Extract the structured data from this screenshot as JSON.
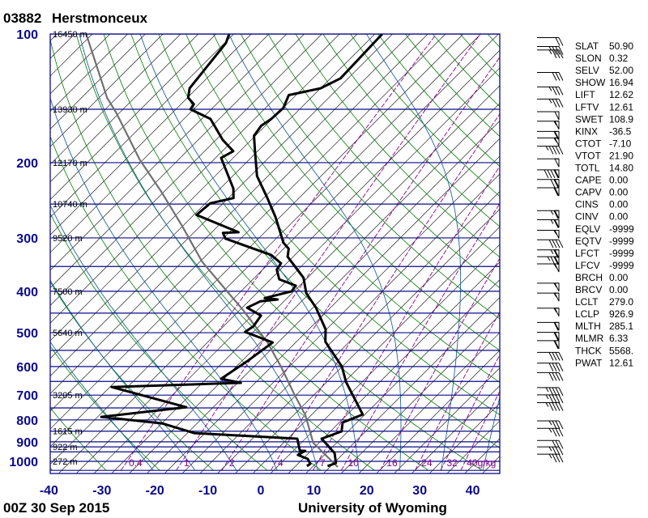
{
  "header": {
    "station": "03882",
    "name": "Herstmonceux"
  },
  "footer": {
    "time": "00Z 30 Sep 2015",
    "credit": "University of Wyoming"
  },
  "colors": {
    "axis": "#0a0a8a",
    "isobar": "#0a0a8a",
    "isotherm": "#000000",
    "dry_adiabat": "#008000",
    "moist_adiabat": "#1e64a0",
    "mixing_ratio": "#8b008b",
    "sounding": "#000000",
    "parcel": "#707070"
  },
  "indices": [
    {
      "key": "SLAT",
      "value": "50.90"
    },
    {
      "key": "SLON",
      "value": "0.32"
    },
    {
      "key": "SELV",
      "value": "52.00"
    },
    {
      "key": "SHOW",
      "value": "16.94"
    },
    {
      "key": "LIFT",
      "value": "12.62"
    },
    {
      "key": "LFTV",
      "value": "12.61"
    },
    {
      "key": "SWET",
      "value": "108.9"
    },
    {
      "key": "KINX",
      "value": "-36.5"
    },
    {
      "key": "CTOT",
      "value": "-7.10"
    },
    {
      "key": "VTOT",
      "value": "21.90"
    },
    {
      "key": "TOTL",
      "value": "14.80"
    },
    {
      "key": "CAPE",
      "value": "0.00"
    },
    {
      "key": "CAPV",
      "value": "0.00"
    },
    {
      "key": "CINS",
      "value": "0.00"
    },
    {
      "key": "CINV",
      "value": "0.00"
    },
    {
      "key": "EQLV",
      "value": "-9999"
    },
    {
      "key": "EQTV",
      "value": "-9999"
    },
    {
      "key": "LFCT",
      "value": "-9999"
    },
    {
      "key": "LFCV",
      "value": "-9999"
    },
    {
      "key": "BRCH",
      "value": "0.00"
    },
    {
      "key": "BRCV",
      "value": "0.00"
    },
    {
      "key": "LCLT",
      "value": "279.0"
    },
    {
      "key": "LCLP",
      "value": "926.9"
    },
    {
      "key": "MLTH",
      "value": "285.1"
    },
    {
      "key": "MLMR",
      "value": "6.33"
    },
    {
      "key": "THCK",
      "value": "5568."
    },
    {
      "key": "PWAT",
      "value": "12.61"
    }
  ],
  "chart_data": {
    "type": "line",
    "diagram": "skew-T log-p",
    "xlabel": "",
    "ylabel": "",
    "pressure_scale": "log",
    "ylim": [
      1050,
      100
    ],
    "xlim": [
      -40,
      45
    ],
    "pressure_ticks": [
      100,
      200,
      300,
      400,
      500,
      600,
      700,
      800,
      900,
      1000
    ],
    "temp_ticks": [
      -40,
      -30,
      -20,
      -10,
      0,
      10,
      20,
      30,
      40
    ],
    "isobars": [
      100,
      150,
      200,
      250,
      300,
      350,
      400,
      450,
      500,
      550,
      600,
      650,
      700,
      750,
      800,
      850,
      900,
      925,
      950,
      1000,
      1050
    ],
    "height_labels": [
      {
        "p": 100,
        "label": "16450 m"
      },
      {
        "p": 150,
        "label": "13930 m"
      },
      {
        "p": 200,
        "label": "12170 m"
      },
      {
        "p": 250,
        "label": "10740 m"
      },
      {
        "p": 300,
        "label": "9520 m"
      },
      {
        "p": 400,
        "label": "7500 m"
      },
      {
        "p": 500,
        "label": "5640 m"
      },
      {
        "p": 700,
        "label": "3205 m"
      },
      {
        "p": 850,
        "label": "1615 m"
      },
      {
        "p": 925,
        "label": "922 m"
      },
      {
        "p": 1000,
        "label": "272 m"
      }
    ],
    "mixing_ratio_labels": [
      {
        "w": 0.4,
        "label": "0.4"
      },
      {
        "w": 1,
        "label": "1"
      },
      {
        "w": 2,
        "label": "2"
      },
      {
        "w": 4,
        "label": "4"
      },
      {
        "w": 7,
        "label": "7"
      },
      {
        "w": 10,
        "label": "10"
      },
      {
        "w": 16,
        "label": "16"
      },
      {
        "w": 24,
        "label": "24"
      },
      {
        "w": 32,
        "label": "32"
      },
      {
        "w": 40,
        "label": "40g/kg"
      }
    ],
    "temperature": [
      {
        "p": 1026,
        "t": 11.2
      },
      {
        "p": 1009,
        "t": 12.2
      },
      {
        "p": 957,
        "t": 10.1
      },
      {
        "p": 885,
        "t": 4.9
      },
      {
        "p": 851,
        "t": 7.3
      },
      {
        "p": 811,
        "t": 5.8
      },
      {
        "p": 777,
        "t": 8.1
      },
      {
        "p": 652,
        "t": -1.2
      },
      {
        "p": 600,
        "t": -4.9
      },
      {
        "p": 525,
        "t": -12.7
      },
      {
        "p": 491,
        "t": -15.0
      },
      {
        "p": 437,
        "t": -20.9
      },
      {
        "p": 404,
        "t": -25.5
      },
      {
        "p": 372,
        "t": -28.9
      },
      {
        "p": 332,
        "t": -35.9
      },
      {
        "p": 318,
        "t": -37.2
      },
      {
        "p": 308,
        "t": -39.3
      },
      {
        "p": 268,
        "t": -45.7
      },
      {
        "p": 242,
        "t": -50.8
      },
      {
        "p": 215,
        "t": -56.9
      },
      {
        "p": 187,
        "t": -62.2
      },
      {
        "p": 173,
        "t": -65.1
      },
      {
        "p": 164,
        "t": -65.6
      },
      {
        "p": 158,
        "t": -65.0
      },
      {
        "p": 149,
        "t": -64.8
      },
      {
        "p": 139,
        "t": -66.2
      },
      {
        "p": 134,
        "t": -61.5
      },
      {
        "p": 127,
        "t": -59.6
      },
      {
        "p": 100,
        "t": -60.1
      }
    ],
    "dewpoint": [
      {
        "p": 1026,
        "t": 7.3
      },
      {
        "p": 1013,
        "t": 7.5
      },
      {
        "p": 987,
        "t": 6.1
      },
      {
        "p": 966,
        "t": 3.5
      },
      {
        "p": 945,
        "t": 4.1
      },
      {
        "p": 945,
        "t": 3.1
      },
      {
        "p": 885,
        "t": 0.3
      },
      {
        "p": 859,
        "t": -20.2
      },
      {
        "p": 815,
        "t": -28.1
      },
      {
        "p": 787,
        "t": -40.8
      },
      {
        "p": 747,
        "t": -26.6
      },
      {
        "p": 670,
        "t": -44.5
      },
      {
        "p": 655,
        "t": -20.9
      },
      {
        "p": 641,
        "t": -25.4
      },
      {
        "p": 580,
        "t": -23.7
      },
      {
        "p": 527,
        "t": -22.5
      },
      {
        "p": 498,
        "t": -29.7
      },
      {
        "p": 483,
        "t": -29.2
      },
      {
        "p": 456,
        "t": -29.8
      },
      {
        "p": 437,
        "t": -33.9
      },
      {
        "p": 422,
        "t": -32.6
      },
      {
        "p": 418,
        "t": -29.7
      },
      {
        "p": 415,
        "t": -32.4
      },
      {
        "p": 400,
        "t": -28.6
      },
      {
        "p": 388,
        "t": -28.9
      },
      {
        "p": 375,
        "t": -33.2
      },
      {
        "p": 356,
        "t": -35.5
      },
      {
        "p": 344,
        "t": -35.9
      },
      {
        "p": 329,
        "t": -39.3
      },
      {
        "p": 315,
        "t": -45.1
      },
      {
        "p": 301,
        "t": -51.1
      },
      {
        "p": 292,
        "t": -52.6
      },
      {
        "p": 291,
        "t": -49.8
      },
      {
        "p": 265,
        "t": -61.0
      },
      {
        "p": 249,
        "t": -60.6
      },
      {
        "p": 242,
        "t": -57.2
      },
      {
        "p": 230,
        "t": -59.0
      },
      {
        "p": 195,
        "t": -67.1
      },
      {
        "p": 188,
        "t": -66.1
      },
      {
        "p": 177,
        "t": -70.2
      },
      {
        "p": 158,
        "t": -76.5
      },
      {
        "p": 150,
        "t": -82.1
      },
      {
        "p": 146,
        "t": -82.4
      },
      {
        "p": 141,
        "t": -84.7
      },
      {
        "p": 134,
        "t": -86.2
      },
      {
        "p": 105,
        "t": -87.9
      },
      {
        "p": 100,
        "t": -89.0
      }
    ],
    "parcel": [
      {
        "p": 1031,
        "t": 13.3
      },
      {
        "p": 927,
        "t": 5.8
      },
      {
        "p": 905,
        "t": 4.1
      },
      {
        "p": 780,
        "t": -2.6
      },
      {
        "p": 696,
        "t": -8.7
      },
      {
        "p": 600,
        "t": -16.4
      },
      {
        "p": 527,
        "t": -23.5
      },
      {
        "p": 442,
        "t": -34.3
      },
      {
        "p": 400,
        "t": -40.8
      },
      {
        "p": 341,
        "t": -51.1
      },
      {
        "p": 282,
        "t": -61.5
      },
      {
        "p": 234,
        "t": -72.0
      },
      {
        "p": 197,
        "t": -82.1
      },
      {
        "p": 153,
        "t": -95.4
      },
      {
        "p": 141,
        "t": -100.0
      },
      {
        "p": 100,
        "t": -116.0
      }
    ],
    "wind_barbs": [
      {
        "p": 102,
        "kt": 20
      },
      {
        "p": 107,
        "kt": 35
      },
      {
        "p": 109,
        "kt": 35
      },
      {
        "p": 123,
        "kt": 30
      },
      {
        "p": 133,
        "kt": 35
      },
      {
        "p": 142,
        "kt": 35
      },
      {
        "p": 152,
        "kt": 50
      },
      {
        "p": 160,
        "kt": 55
      },
      {
        "p": 169,
        "kt": 60
      },
      {
        "p": 175,
        "kt": 55
      },
      {
        "p": 183,
        "kt": 45
      },
      {
        "p": 196,
        "kt": 50
      },
      {
        "p": 208,
        "kt": 90
      },
      {
        "p": 219,
        "kt": 70
      },
      {
        "p": 229,
        "kt": 60
      },
      {
        "p": 259,
        "kt": 65
      },
      {
        "p": 272,
        "kt": 65
      },
      {
        "p": 288,
        "kt": 55
      },
      {
        "p": 303,
        "kt": 40
      },
      {
        "p": 320,
        "kt": 65
      },
      {
        "p": 332,
        "kt": 75
      },
      {
        "p": 345,
        "kt": 55
      },
      {
        "p": 383,
        "kt": 55
      },
      {
        "p": 404,
        "kt": 55
      },
      {
        "p": 438,
        "kt": 55
      },
      {
        "p": 473,
        "kt": 60
      },
      {
        "p": 499,
        "kt": 60
      },
      {
        "p": 522,
        "kt": 60
      },
      {
        "p": 556,
        "kt": 40
      },
      {
        "p": 589,
        "kt": 40
      },
      {
        "p": 620,
        "kt": 40
      },
      {
        "p": 672,
        "kt": 45
      },
      {
        "p": 699,
        "kt": 45
      },
      {
        "p": 729,
        "kt": 45
      },
      {
        "p": 804,
        "kt": 35
      },
      {
        "p": 837,
        "kt": 35
      },
      {
        "p": 894,
        "kt": 30
      },
      {
        "p": 925,
        "kt": 35
      },
      {
        "p": 962,
        "kt": 35
      }
    ]
  }
}
